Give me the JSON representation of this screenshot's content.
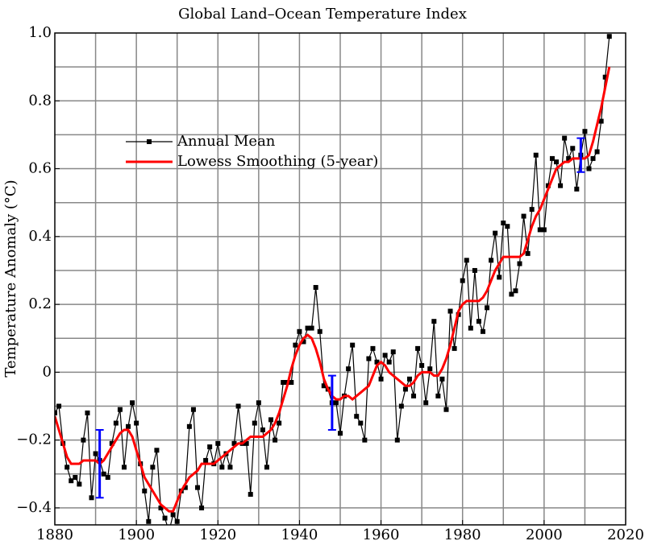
{
  "chart_data": {
    "type": "line",
    "title": "Global Land–Ocean Temperature Index",
    "y_label": "Temperature Anomaly (°C)",
    "x": [
      1880,
      1881,
      1882,
      1883,
      1884,
      1885,
      1886,
      1887,
      1888,
      1889,
      1890,
      1891,
      1892,
      1893,
      1894,
      1895,
      1896,
      1897,
      1898,
      1899,
      1900,
      1901,
      1902,
      1903,
      1904,
      1905,
      1906,
      1907,
      1908,
      1909,
      1910,
      1911,
      1912,
      1913,
      1914,
      1915,
      1916,
      1917,
      1918,
      1919,
      1920,
      1921,
      1922,
      1923,
      1924,
      1925,
      1926,
      1927,
      1928,
      1929,
      1930,
      1931,
      1932,
      1933,
      1934,
      1935,
      1936,
      1937,
      1938,
      1939,
      1940,
      1941,
      1942,
      1943,
      1944,
      1945,
      1946,
      1947,
      1948,
      1949,
      1950,
      1951,
      1952,
      1953,
      1954,
      1955,
      1956,
      1957,
      1958,
      1959,
      1960,
      1961,
      1962,
      1963,
      1964,
      1965,
      1966,
      1967,
      1968,
      1969,
      1970,
      1971,
      1972,
      1973,
      1974,
      1975,
      1976,
      1977,
      1978,
      1979,
      1980,
      1981,
      1982,
      1983,
      1984,
      1985,
      1986,
      1987,
      1988,
      1989,
      1990,
      1991,
      1992,
      1993,
      1994,
      1995,
      1996,
      1997,
      1998,
      1999,
      2000,
      2001,
      2002,
      2003,
      2004,
      2005,
      2006,
      2007,
      2008,
      2009,
      2010,
      2011,
      2012,
      2013,
      2014,
      2015,
      2016
    ],
    "series": [
      {
        "name": "Annual Mean",
        "color": "#000000",
        "marker": "square",
        "values": [
          -0.12,
          -0.1,
          -0.21,
          -0.28,
          -0.32,
          -0.31,
          -0.33,
          -0.2,
          -0.12,
          -0.37,
          -0.24,
          -0.26,
          -0.3,
          -0.31,
          -0.21,
          -0.15,
          -0.11,
          -0.28,
          -0.16,
          -0.09,
          -0.15,
          -0.27,
          -0.35,
          -0.44,
          -0.28,
          -0.23,
          -0.4,
          -0.43,
          -0.47,
          -0.42,
          -0.44,
          -0.35,
          -0.34,
          -0.16,
          -0.11,
          -0.34,
          -0.4,
          -0.26,
          -0.22,
          -0.27,
          -0.21,
          -0.28,
          -0.24,
          -0.28,
          -0.21,
          -0.1,
          -0.21,
          -0.21,
          -0.36,
          -0.15,
          -0.09,
          -0.17,
          -0.28,
          -0.14,
          -0.2,
          -0.15,
          -0.03,
          -0.03,
          -0.03,
          0.08,
          0.12,
          0.09,
          0.13,
          0.13,
          0.25,
          0.12,
          -0.04,
          -0.05,
          -0.09,
          -0.09,
          -0.18,
          -0.07,
          0.01,
          0.08,
          -0.13,
          -0.15,
          -0.2,
          0.04,
          0.07,
          0.03,
          -0.02,
          0.05,
          0.03,
          0.06,
          -0.2,
          -0.1,
          -0.05,
          -0.02,
          -0.07,
          0.07,
          0.02,
          -0.09,
          0.01,
          0.15,
          -0.07,
          -0.02,
          -0.11,
          0.18,
          0.07,
          0.17,
          0.27,
          0.33,
          0.13,
          0.3,
          0.15,
          0.12,
          0.19,
          0.33,
          0.41,
          0.28,
          0.44,
          0.43,
          0.23,
          0.24,
          0.32,
          0.46,
          0.35,
          0.48,
          0.64,
          0.42,
          0.42,
          0.55,
          0.63,
          0.62,
          0.55,
          0.69,
          0.63,
          0.66,
          0.54,
          0.64,
          0.71,
          0.6,
          0.63,
          0.65,
          0.74,
          0.87,
          0.99
        ]
      },
      {
        "name": "Lowess Smoothing (5-year)",
        "color": "#ff0000",
        "values": [
          -0.13,
          -0.17,
          -0.21,
          -0.25,
          -0.27,
          -0.27,
          -0.27,
          -0.26,
          -0.26,
          -0.26,
          -0.26,
          -0.27,
          -0.26,
          -0.24,
          -0.22,
          -0.2,
          -0.18,
          -0.17,
          -0.17,
          -0.19,
          -0.23,
          -0.27,
          -0.31,
          -0.33,
          -0.35,
          -0.37,
          -0.39,
          -0.4,
          -0.41,
          -0.41,
          -0.38,
          -0.35,
          -0.33,
          -0.31,
          -0.3,
          -0.29,
          -0.27,
          -0.27,
          -0.27,
          -0.27,
          -0.26,
          -0.25,
          -0.24,
          -0.23,
          -0.22,
          -0.21,
          -0.21,
          -0.2,
          -0.19,
          -0.19,
          -0.19,
          -0.19,
          -0.18,
          -0.17,
          -0.15,
          -0.12,
          -0.08,
          -0.04,
          0.01,
          0.05,
          0.08,
          0.1,
          0.11,
          0.1,
          0.07,
          0.03,
          -0.02,
          -0.05,
          -0.07,
          -0.08,
          -0.08,
          -0.07,
          -0.07,
          -0.08,
          -0.07,
          -0.06,
          -0.05,
          -0.04,
          -0.01,
          0.02,
          0.03,
          0.02,
          0.0,
          -0.01,
          -0.02,
          -0.03,
          -0.04,
          -0.04,
          -0.03,
          -0.01,
          0.0,
          0.0,
          0.0,
          -0.01,
          -0.01,
          0.01,
          0.04,
          0.08,
          0.13,
          0.18,
          0.2,
          0.21,
          0.21,
          0.21,
          0.21,
          0.22,
          0.24,
          0.27,
          0.3,
          0.32,
          0.34,
          0.34,
          0.34,
          0.34,
          0.34,
          0.35,
          0.39,
          0.43,
          0.46,
          0.48,
          0.51,
          0.54,
          0.57,
          0.6,
          0.61,
          0.62,
          0.62,
          0.63,
          0.63,
          0.63,
          0.63,
          0.64,
          0.68,
          0.73,
          0.78,
          0.84,
          0.9
        ]
      }
    ],
    "error_bars": {
      "color": "#0000ff",
      "x": [
        1891,
        1948,
        2009
      ],
      "values": [
        -0.27,
        -0.09,
        0.64
      ],
      "errors": [
        0.1,
        0.08,
        0.05
      ]
    },
    "xlim": [
      1880,
      2020
    ],
    "ylim": [
      -0.45,
      1.0
    ],
    "xticks": [
      1880,
      1900,
      1920,
      1940,
      1960,
      1980,
      2000,
      2020
    ],
    "yticks": [
      {
        "value": 1.0,
        "label": "1.0"
      },
      0.8,
      0.6,
      0.4,
      0.2,
      0,
      {
        "value": -0.2,
        "label": "−0.2"
      },
      {
        "value": -0.4,
        "label": "−0.4"
      }
    ],
    "xgrid": [
      1890,
      1900,
      1910,
      1920,
      1930,
      1940,
      1950,
      1960,
      1970,
      1980,
      1990,
      2000,
      2010
    ],
    "ygrid": [
      -0.4,
      -0.3,
      -0.2,
      -0.1,
      0,
      0.1,
      0.2,
      0.3,
      0.4,
      0.5,
      0.6,
      0.7,
      0.8,
      0.9
    ],
    "grid": true,
    "legend": "upper left"
  }
}
